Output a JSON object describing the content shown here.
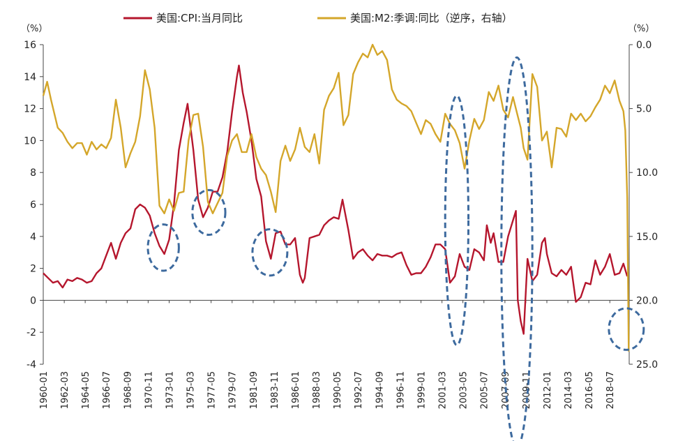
{
  "chart_data": {
    "type": "line",
    "title": "",
    "legend": {
      "placement": "top-center",
      "items": [
        {
          "label": "美国:CPI:当月同比",
          "color": "#b5162d"
        },
        {
          "label": "美国:M2:季调:同比（逆序，右轴）",
          "color": "#d4a62a"
        }
      ]
    },
    "y_left": {
      "unit": "（%）",
      "ylim": [
        -4,
        16
      ],
      "ticks": [
        16,
        14,
        12,
        10,
        8,
        6,
        4,
        2,
        0,
        -2,
        -4
      ],
      "tick_labels": [
        "16",
        "14",
        "12",
        "10",
        "8",
        "6",
        "4",
        "2",
        "0",
        "-2",
        "-4"
      ]
    },
    "y_right": {
      "unit": "（%）",
      "ylim": [
        0,
        25
      ],
      "inverted": true,
      "ticks": [
        0,
        5,
        10,
        15,
        20,
        25
      ],
      "tick_labels": [
        "0.0",
        "5.0",
        "10.0",
        "15.0",
        "20.0",
        "25.0"
      ]
    },
    "x_axis": {
      "start": 1960.0,
      "end": 2020.5,
      "tick_labels": [
        "1960-01",
        "1962-03",
        "1964-05",
        "1966-07",
        "1968-09",
        "1970-11",
        "1973-01",
        "1975-03",
        "1977-05",
        "1979-07",
        "1981-09",
        "1983-11",
        "1986-01",
        "1988-03",
        "1990-05",
        "1992-07",
        "1994-09",
        "1996-11",
        "1999-01",
        "2001-03",
        "2003-05",
        "2005-07",
        "2007-09",
        "2009-11",
        "2012-01",
        "2014-03",
        "2016-05",
        "2018-07"
      ],
      "tick_values": [
        1960.0,
        1962.17,
        1964.33,
        1966.5,
        1968.67,
        1970.83,
        1973.0,
        1975.17,
        1977.33,
        1979.5,
        1981.67,
        1983.83,
        1986.0,
        1988.17,
        1990.33,
        1992.5,
        1994.67,
        1996.83,
        1999.0,
        2001.17,
        2003.33,
        2005.5,
        2007.67,
        2009.83,
        2012.0,
        2014.17,
        2016.33,
        2018.5
      ]
    },
    "series": [
      {
        "name": "美国:CPI:当月同比",
        "axis": "left",
        "color": "#b5162d",
        "x": [
          1960.0,
          1960.5,
          1961.0,
          1961.5,
          1962.0,
          1962.5,
          1963.0,
          1963.5,
          1964.0,
          1964.5,
          1965.0,
          1965.5,
          1966.0,
          1966.5,
          1967.0,
          1967.5,
          1968.0,
          1968.5,
          1969.0,
          1969.5,
          1970.0,
          1970.5,
          1971.0,
          1971.5,
          1972.0,
          1972.5,
          1973.0,
          1973.5,
          1974.0,
          1974.5,
          1974.9,
          1975.5,
          1976.0,
          1976.5,
          1977.0,
          1977.5,
          1978.0,
          1978.5,
          1979.0,
          1979.5,
          1980.0,
          1980.2,
          1980.6,
          1981.0,
          1981.5,
          1982.0,
          1982.5,
          1983.0,
          1983.5,
          1984.0,
          1984.5,
          1985.0,
          1985.5,
          1986.0,
          1986.5,
          1986.8,
          1987.0,
          1987.5,
          1988.0,
          1988.5,
          1989.0,
          1989.5,
          1990.0,
          1990.5,
          1990.9,
          1991.5,
          1992.0,
          1992.5,
          1993.0,
          1993.5,
          1994.0,
          1994.5,
          1995.0,
          1995.5,
          1996.0,
          1996.5,
          1997.0,
          1997.5,
          1998.0,
          1998.5,
          1999.0,
          1999.5,
          2000.0,
          2000.5,
          2001.0,
          2001.5,
          2002.0,
          2002.5,
          2003.0,
          2003.5,
          2004.0,
          2004.5,
          2005.0,
          2005.5,
          2005.8,
          2006.2,
          2006.5,
          2007.0,
          2007.5,
          2008.0,
          2008.5,
          2008.8,
          2009.0,
          2009.3,
          2009.6,
          2010.0,
          2010.5,
          2011.0,
          2011.5,
          2011.8,
          2012.0,
          2012.5,
          2013.0,
          2013.5,
          2014.0,
          2014.5,
          2015.0,
          2015.5,
          2016.0,
          2016.5,
          2017.0,
          2017.5,
          2018.0,
          2018.5,
          2019.0,
          2019.5,
          2019.9,
          2020.3
        ],
        "values": [
          1.7,
          1.4,
          1.1,
          1.2,
          0.8,
          1.3,
          1.2,
          1.4,
          1.3,
          1.1,
          1.2,
          1.7,
          2.0,
          2.8,
          3.6,
          2.6,
          3.6,
          4.2,
          4.5,
          5.7,
          6.0,
          5.8,
          5.3,
          4.2,
          3.4,
          2.9,
          3.8,
          6.0,
          9.4,
          11.1,
          12.3,
          9.4,
          6.3,
          5.2,
          5.8,
          6.8,
          6.8,
          7.7,
          9.3,
          11.8,
          14.0,
          14.7,
          13.0,
          11.8,
          10.0,
          7.6,
          6.5,
          3.7,
          2.6,
          4.2,
          4.3,
          3.5,
          3.5,
          3.9,
          1.6,
          1.1,
          1.4,
          3.9,
          4.0,
          4.1,
          4.7,
          5.0,
          5.2,
          5.1,
          6.3,
          4.4,
          2.6,
          3.0,
          3.2,
          2.8,
          2.5,
          2.9,
          2.8,
          2.8,
          2.7,
          2.9,
          3.0,
          2.2,
          1.6,
          1.7,
          1.7,
          2.1,
          2.7,
          3.5,
          3.5,
          3.2,
          1.1,
          1.5,
          2.9,
          2.1,
          1.9,
          3.2,
          3.0,
          2.5,
          4.7,
          3.6,
          4.2,
          2.4,
          2.4,
          4.0,
          5.0,
          5.6,
          0.0,
          -1.3,
          -2.1,
          2.6,
          1.2,
          1.6,
          3.6,
          3.9,
          2.9,
          1.7,
          1.5,
          1.9,
          1.6,
          2.1,
          -0.1,
          0.2,
          1.1,
          1.0,
          2.5,
          1.6,
          2.1,
          2.9,
          1.6,
          1.7,
          2.3,
          1.5
        ]
      },
      {
        "name": "美国:M2:季调:同比（逆序，右轴）",
        "axis": "right",
        "color": "#d4a62a",
        "x": [
          1960.0,
          1960.4,
          1960.8,
          1961.5,
          1962.0,
          1962.5,
          1963.0,
          1963.5,
          1964.0,
          1964.5,
          1965.0,
          1965.5,
          1966.0,
          1966.5,
          1967.0,
          1967.5,
          1968.0,
          1968.5,
          1969.0,
          1969.5,
          1970.0,
          1970.5,
          1971.0,
          1971.5,
          1972.0,
          1972.5,
          1973.0,
          1973.5,
          1974.0,
          1974.5,
          1975.0,
          1975.5,
          1976.0,
          1976.5,
          1977.0,
          1977.5,
          1978.0,
          1978.5,
          1979.0,
          1979.5,
          1980.0,
          1980.5,
          1981.0,
          1981.5,
          1982.0,
          1982.5,
          1983.0,
          1983.5,
          1984.0,
          1984.5,
          1985.0,
          1985.5,
          1986.0,
          1986.5,
          1987.0,
          1987.5,
          1988.0,
          1988.5,
          1989.0,
          1989.5,
          1990.0,
          1990.5,
          1991.0,
          1991.5,
          1992.0,
          1992.5,
          1993.0,
          1993.5,
          1994.0,
          1994.5,
          1995.0,
          1995.5,
          1996.0,
          1996.5,
          1997.0,
          1997.5,
          1998.0,
          1998.5,
          1999.0,
          1999.5,
          2000.0,
          2000.5,
          2001.0,
          2001.5,
          2002.0,
          2002.5,
          2003.0,
          2003.5,
          2004.0,
          2004.5,
          2005.0,
          2005.5,
          2006.0,
          2006.5,
          2007.0,
          2007.5,
          2008.0,
          2008.5,
          2009.0,
          2009.3,
          2009.6,
          2010.0,
          2010.5,
          2011.0,
          2011.5,
          2012.0,
          2012.5,
          2013.0,
          2013.5,
          2014.0,
          2014.5,
          2015.0,
          2015.5,
          2016.0,
          2016.5,
          2017.0,
          2017.5,
          2018.0,
          2018.5,
          2019.0,
          2019.5,
          2019.9,
          2020.1,
          2020.3,
          2020.45
        ],
        "values": [
          4.0,
          2.9,
          4.3,
          6.5,
          6.9,
          7.6,
          8.1,
          7.7,
          7.7,
          8.6,
          7.6,
          8.2,
          7.8,
          8.1,
          7.3,
          4.3,
          6.5,
          9.6,
          8.5,
          7.6,
          5.6,
          2.0,
          3.5,
          6.5,
          12.6,
          13.2,
          12.1,
          13.0,
          11.6,
          11.5,
          7.5,
          5.5,
          5.4,
          8.0,
          12.3,
          13.2,
          12.4,
          11.6,
          8.7,
          7.5,
          7.0,
          8.4,
          8.4,
          7.0,
          8.8,
          9.7,
          10.2,
          11.5,
          13.1,
          9.1,
          7.9,
          9.1,
          8.2,
          6.5,
          8.0,
          8.4,
          7.0,
          9.3,
          5.1,
          4.0,
          3.4,
          2.2,
          6.3,
          5.5,
          2.3,
          1.4,
          0.7,
          1.0,
          0.0,
          0.8,
          0.5,
          1.2,
          3.5,
          4.3,
          4.6,
          4.8,
          5.2,
          6.1,
          7.0,
          5.9,
          6.2,
          7.0,
          7.6,
          5.4,
          6.2,
          6.7,
          7.7,
          9.7,
          7.5,
          5.8,
          6.6,
          5.9,
          3.7,
          4.4,
          3.2,
          5.1,
          5.7,
          4.1,
          5.6,
          6.5,
          8.1,
          9.0,
          2.3,
          3.3,
          7.5,
          6.8,
          9.6,
          6.5,
          6.6,
          7.2,
          5.4,
          5.9,
          5.4,
          6.0,
          5.6,
          4.9,
          4.3,
          3.2,
          3.8,
          2.8,
          4.4,
          5.2,
          6.7,
          12.0,
          24.0
        ]
      }
    ],
    "annotations": [
      {
        "type": "dashed-ellipse",
        "x": 1972.4,
        "y": 3.3,
        "rx": 1.6,
        "ry": 1.45
      },
      {
        "type": "dashed-ellipse",
        "x": 1977.1,
        "y": 5.5,
        "rx": 1.7,
        "ry": 1.4
      },
      {
        "type": "dashed-ellipse",
        "x": 1983.4,
        "y": 3.0,
        "rx": 1.8,
        "ry": 1.45
      },
      {
        "type": "dashed-ellipse",
        "x": 2002.7,
        "y": 5.0,
        "rx": 1.2,
        "ry": 7.8
      },
      {
        "type": "dashed-ellipse",
        "x": 2008.9,
        "y": 3.0,
        "rx": 1.6,
        "ry": 12.2
      },
      {
        "type": "dashed-ellipse",
        "x": 2020.2,
        "y": -1.8,
        "rx": 1.8,
        "ry": 1.3
      }
    ]
  }
}
